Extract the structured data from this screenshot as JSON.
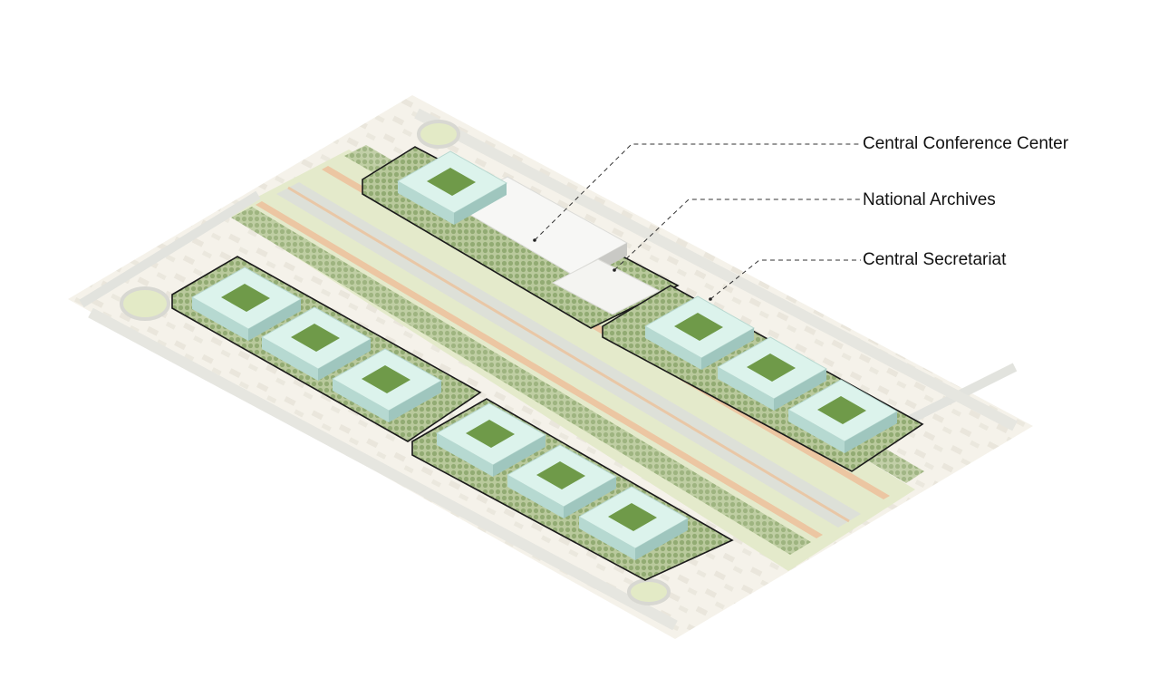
{
  "labels": {
    "conference": "Central Conference Center",
    "archives": "National Archives",
    "secretariat": "Central Secretariat"
  },
  "colors": {
    "background": "#ffffff",
    "ground": "#f1eee2",
    "park": "#e3e9c7",
    "road": "#dfe2dd",
    "path": "#e9c9a6",
    "trees": "#a6b98a",
    "building_roof": "#dcf3ec",
    "building_side": "#a9cfc8",
    "courtyard": "#6f9a49",
    "plot_outline": "#1a1a1a",
    "white_block": "#f7f7f5",
    "leader": "#333333"
  },
  "icons": [
    "roundabout-icon",
    "building-icon",
    "courtyard-icon"
  ]
}
